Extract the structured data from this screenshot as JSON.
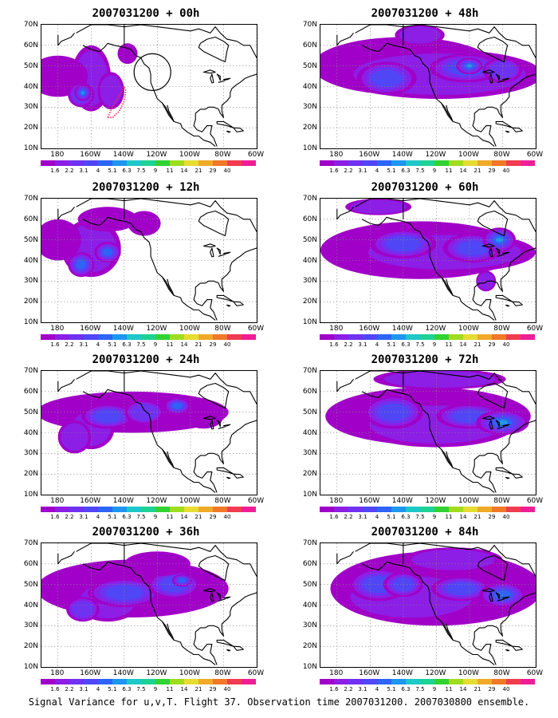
{
  "panels": [
    {
      "title": "2007031200 + 00h"
    },
    {
      "title": "2007031200 + 48h"
    },
    {
      "title": "2007031200 + 12h"
    },
    {
      "title": "2007031200 + 60h"
    },
    {
      "title": "2007031200 + 24h"
    },
    {
      "title": "2007031200 + 72h"
    },
    {
      "title": "2007031200 + 36h"
    },
    {
      "title": "2007031200 + 84h"
    }
  ],
  "y_ticks": [
    "70N",
    "60N",
    "50N",
    "40N",
    "30N",
    "20N",
    "10N"
  ],
  "x_ticks": [
    "180",
    "160W",
    "140W",
    "120W",
    "100W",
    "80W",
    "60W"
  ],
  "colorbar": {
    "labels": [
      "1.6",
      "2.2",
      "3.1",
      "4",
      "5.1",
      "6.3",
      "7.5",
      "9",
      "11",
      "14",
      "21",
      "29",
      "40"
    ],
    "colors": [
      "#a000c8",
      "#8c1ee6",
      "#6e32f0",
      "#5046f5",
      "#2d64f5",
      "#1e96f0",
      "#1ec8c8",
      "#1ed296",
      "#32d232",
      "#a0dc1e",
      "#e6dc32",
      "#f0aa28",
      "#f07828",
      "#f03c50",
      "#f01e96"
    ]
  },
  "caption": "Signal Variance for u,v,T. Flight 37. Observation time 2007031200. 2007030800 ensemble."
}
